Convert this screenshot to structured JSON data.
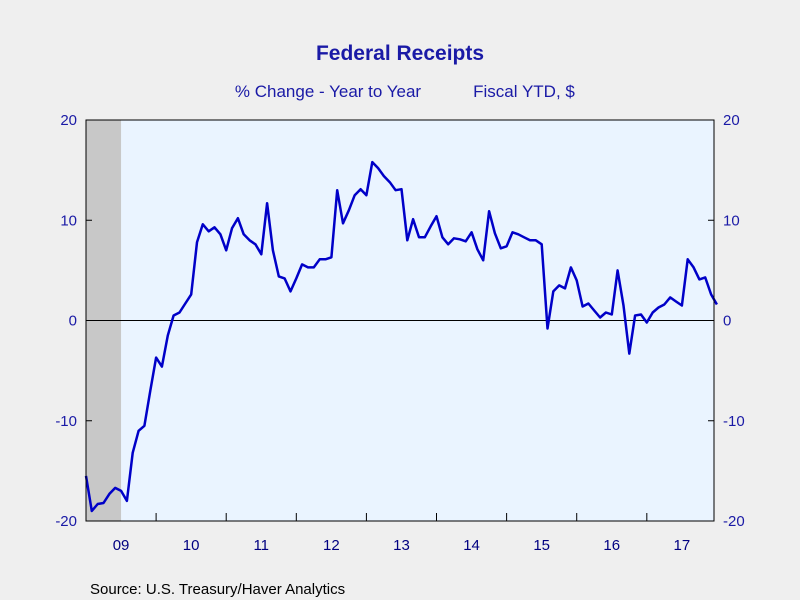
{
  "chart_data": {
    "type": "line",
    "title": "Federal Receipts",
    "subtitle_left": "% Change - Year to Year",
    "subtitle_right": "Fiscal YTD, $",
    "source": "Source:  U.S. Treasury/Haver Analytics",
    "x_tick_labels": [
      "09",
      "10",
      "11",
      "12",
      "13",
      "14",
      "15",
      "16",
      "17"
    ],
    "y_tick_labels": [
      "20",
      "10",
      "0",
      "-10",
      "-20"
    ],
    "y_tick_values": [
      20,
      10,
      0,
      -10,
      -20
    ],
    "ylim": [
      -20,
      20
    ],
    "x_start": "2009-01",
    "grid": false,
    "recession_shading": {
      "start": "2009-01",
      "end": "2009-06"
    },
    "zero_line": true,
    "colors": {
      "line": "#0000c8",
      "plot_bg": "#eaf4ff",
      "recession": "#c8c8c8",
      "frame": "#000000",
      "text": "#1a1aa6"
    },
    "series": [
      {
        "values": [
          -15.5,
          -19.0,
          -18.3,
          -18.2,
          -17.3,
          -16.7,
          -17.0,
          -18.0,
          -13.2,
          -11.0,
          -10.5,
          -7.0,
          -3.7,
          -4.6,
          -1.5,
          0.5,
          0.8,
          1.7,
          2.6,
          7.8,
          9.6,
          8.9,
          9.3,
          8.6,
          7.0,
          9.2,
          10.2,
          8.6,
          8.0,
          7.6,
          6.6,
          11.7,
          7.0,
          4.4,
          4.2,
          2.9,
          4.2,
          5.6,
          5.3,
          5.3,
          6.1,
          6.1,
          6.3,
          13.0,
          9.7,
          11.0,
          12.5,
          13.1,
          12.5,
          15.8,
          15.2,
          14.4,
          13.8,
          13.0,
          13.1,
          8.0,
          10.1,
          8.3,
          8.3,
          9.4,
          10.4,
          8.3,
          7.6,
          8.2,
          8.1,
          7.9,
          8.8,
          7.1,
          6.0,
          10.9,
          8.7,
          7.2,
          7.4,
          8.8,
          8.6,
          8.3,
          8.0,
          8.0,
          7.6,
          -0.8,
          2.9,
          3.5,
          3.2,
          5.3,
          4.0,
          1.4,
          1.7,
          1.0,
          0.3,
          0.8,
          0.6,
          5.0,
          1.5,
          -3.3,
          0.5,
          0.6,
          -0.2,
          0.8,
          1.3,
          1.6,
          2.3,
          1.9,
          1.5,
          6.1,
          5.3,
          4.1,
          4.3,
          2.6,
          1.6
        ]
      }
    ]
  }
}
